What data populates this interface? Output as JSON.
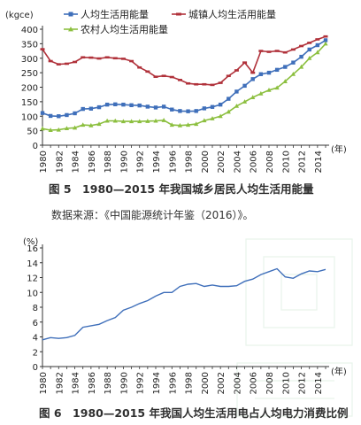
{
  "figure1": {
    "caption": "图 5　1980—2015 年我国城乡居民人均生活用能量",
    "source": "数据来源：《中国能源统计年鉴（2016）》。"
  },
  "figure2": {
    "caption": "图 6　1980—2015 年我国人均生活用电占人均电力消费比例"
  },
  "chart_data": [
    {
      "type": "line",
      "y_unit_label": "(kgce)",
      "x_unit_label": "(年)",
      "x": [
        1980,
        1981,
        1982,
        1983,
        1984,
        1985,
        1986,
        1987,
        1988,
        1989,
        1990,
        1991,
        1992,
        1993,
        1994,
        1995,
        1996,
        1997,
        1998,
        1999,
        2000,
        2001,
        2002,
        2003,
        2004,
        2005,
        2006,
        2007,
        2008,
        2009,
        2010,
        2011,
        2012,
        2013,
        2014,
        2015
      ],
      "xticks": [
        1980,
        1982,
        1984,
        1986,
        1988,
        1990,
        1992,
        1994,
        1996,
        1998,
        2000,
        2002,
        2004,
        2006,
        2008,
        2010,
        2012,
        2014
      ],
      "ylim": [
        0,
        400
      ],
      "yticks": [
        0,
        50,
        100,
        150,
        200,
        250,
        300,
        350,
        400
      ],
      "legend_position": "top",
      "series": [
        {
          "name": "人均生活用能量",
          "color": "#3f6fba",
          "marker": "square",
          "values": [
            111,
            101,
            100,
            104,
            110,
            125,
            126,
            131,
            140,
            141,
            140,
            138,
            137,
            133,
            130,
            133,
            123,
            118,
            117,
            118,
            127,
            132,
            140,
            160,
            185,
            205,
            228,
            245,
            250,
            260,
            270,
            285,
            305,
            330,
            345,
            362
          ]
        },
        {
          "name": "城镇人均生活用能量",
          "color": "#b0313a",
          "marker": "dash",
          "values": [
            331,
            290,
            279,
            281,
            287,
            303,
            302,
            299,
            303,
            300,
            298,
            290,
            268,
            254,
            236,
            239,
            235,
            225,
            213,
            210,
            210,
            208,
            215,
            239,
            258,
            285,
            250,
            325,
            322,
            325,
            320,
            330,
            342,
            353,
            365,
            375
          ]
        },
        {
          "name": "农村人均生活用能量",
          "color": "#8cbf3f",
          "marker": "triangle",
          "values": [
            57,
            52,
            53,
            58,
            60,
            70,
            68,
            73,
            84,
            84,
            82,
            82,
            82,
            83,
            84,
            86,
            70,
            68,
            70,
            73,
            85,
            92,
            100,
            115,
            135,
            150,
            165,
            178,
            190,
            198,
            220,
            245,
            270,
            300,
            320,
            350
          ]
        }
      ]
    },
    {
      "type": "line",
      "y_unit_label": "(%)",
      "x_unit_label": "(年)",
      "x": [
        1980,
        1981,
        1982,
        1983,
        1984,
        1985,
        1986,
        1987,
        1988,
        1989,
        1990,
        1991,
        1992,
        1993,
        1994,
        1995,
        1996,
        1997,
        1998,
        1999,
        2000,
        2001,
        2002,
        2003,
        2004,
        2005,
        2006,
        2007,
        2008,
        2009,
        2010,
        2011,
        2012,
        2013,
        2014,
        2015
      ],
      "xticks": [
        1980,
        1982,
        1984,
        1986,
        1988,
        1990,
        1992,
        1994,
        1996,
        1998,
        2000,
        2002,
        2004,
        2006,
        2008,
        2010,
        2012,
        2014
      ],
      "ylim": [
        0,
        16
      ],
      "yticks": [
        0,
        2,
        4,
        6,
        8,
        10,
        12,
        14,
        16
      ],
      "series": [
        {
          "color": "#3f6fba",
          "values": [
            3.6,
            3.9,
            3.8,
            3.9,
            4.2,
            5.3,
            5.5,
            5.7,
            6.2,
            6.6,
            7.6,
            8.0,
            8.5,
            8.9,
            9.5,
            10.0,
            10.0,
            10.8,
            11.1,
            11.2,
            10.8,
            11.0,
            10.8,
            10.8,
            10.9,
            11.5,
            11.8,
            12.4,
            12.8,
            13.2,
            12.1,
            11.9,
            12.5,
            12.9,
            12.8,
            13.1
          ]
        }
      ]
    }
  ]
}
